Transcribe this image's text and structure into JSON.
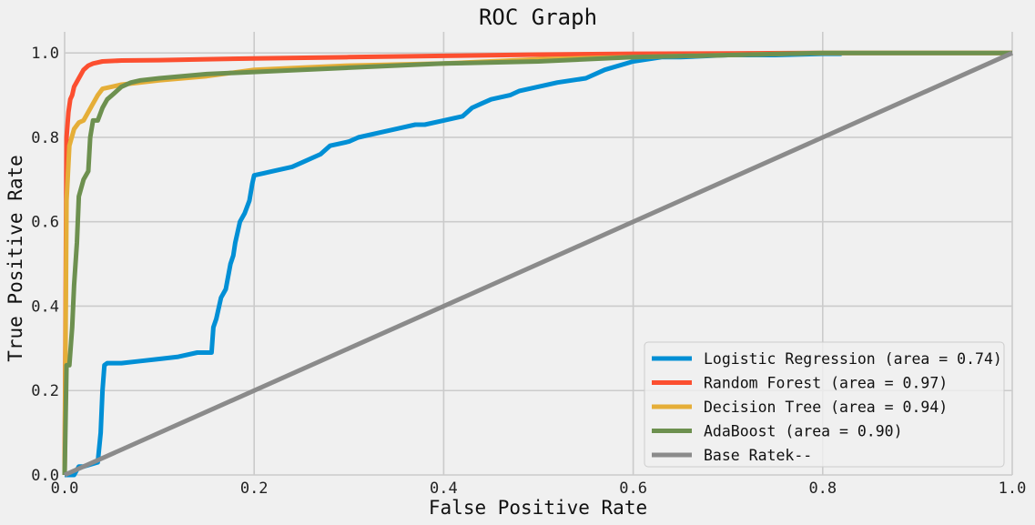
{
  "chart_data": {
    "type": "line",
    "title": "ROC Graph",
    "xlabel": "False Positive Rate",
    "ylabel": "True Positive Rate",
    "xlim": [
      0.0,
      1.0
    ],
    "ylim": [
      0.0,
      1.05
    ],
    "xticks": [
      0.0,
      0.2,
      0.4,
      0.6,
      0.8,
      1.0
    ],
    "xtick_labels": [
      "0.0",
      "0.2",
      "0.4",
      "0.6",
      "0.8",
      "1.0"
    ],
    "yticks": [
      0.0,
      0.2,
      0.4,
      0.6,
      0.8,
      1.0
    ],
    "ytick_labels": [
      "0.0",
      "0.2",
      "0.4",
      "0.6",
      "0.8",
      "1.0"
    ],
    "grid": true,
    "legend_position": "bottom-right",
    "series": [
      {
        "name": "Logistic Regression (area = 0.74)",
        "color": "#008fd5",
        "x": [
          0.0,
          0.01,
          0.015,
          0.02,
          0.035,
          0.038,
          0.04,
          0.042,
          0.045,
          0.06,
          0.08,
          0.1,
          0.12,
          0.14,
          0.155,
          0.157,
          0.16,
          0.165,
          0.17,
          0.175,
          0.178,
          0.18,
          0.185,
          0.19,
          0.195,
          0.198,
          0.2,
          0.21,
          0.22,
          0.24,
          0.25,
          0.27,
          0.28,
          0.29,
          0.3,
          0.31,
          0.33,
          0.35,
          0.37,
          0.38,
          0.4,
          0.42,
          0.43,
          0.44,
          0.45,
          0.47,
          0.48,
          0.5,
          0.52,
          0.55,
          0.57,
          0.6,
          0.63,
          0.65,
          0.7,
          0.75,
          0.8,
          0.82
        ],
        "y": [
          0.0,
          0.0,
          0.02,
          0.02,
          0.03,
          0.1,
          0.2,
          0.26,
          0.265,
          0.265,
          0.27,
          0.275,
          0.28,
          0.29,
          0.29,
          0.35,
          0.37,
          0.42,
          0.44,
          0.5,
          0.52,
          0.55,
          0.6,
          0.62,
          0.65,
          0.69,
          0.71,
          0.715,
          0.72,
          0.73,
          0.74,
          0.76,
          0.78,
          0.785,
          0.79,
          0.8,
          0.81,
          0.82,
          0.83,
          0.83,
          0.84,
          0.85,
          0.87,
          0.88,
          0.89,
          0.9,
          0.91,
          0.92,
          0.93,
          0.94,
          0.96,
          0.98,
          0.99,
          0.99,
          0.995,
          0.995,
          0.998,
          0.998
        ]
      },
      {
        "name": "Random Forest (area = 0.97)",
        "color": "#fc4f30",
        "x": [
          0.0,
          0.002,
          0.004,
          0.006,
          0.008,
          0.01,
          0.015,
          0.02,
          0.025,
          0.03,
          0.04,
          0.06,
          0.1,
          0.15,
          0.2,
          0.3,
          0.4,
          0.5,
          0.6,
          0.7,
          0.8,
          0.9,
          1.0
        ],
        "y": [
          0.0,
          0.8,
          0.86,
          0.89,
          0.9,
          0.92,
          0.94,
          0.96,
          0.97,
          0.975,
          0.98,
          0.982,
          0.983,
          0.985,
          0.987,
          0.99,
          0.993,
          0.996,
          0.998,
          0.999,
          1.0,
          1.0,
          1.0
        ]
      },
      {
        "name": "Decision Tree (area = 0.94)",
        "color": "#e5ae38",
        "x": [
          0.0,
          0.002,
          0.005,
          0.01,
          0.015,
          0.02,
          0.025,
          0.03,
          0.035,
          0.04,
          0.05,
          0.06,
          0.08,
          0.1,
          0.15,
          0.2,
          0.25,
          0.3,
          0.4,
          0.5,
          0.6,
          0.7,
          0.8,
          0.9,
          1.0
        ],
        "y": [
          0.0,
          0.65,
          0.78,
          0.82,
          0.835,
          0.84,
          0.86,
          0.88,
          0.9,
          0.915,
          0.92,
          0.925,
          0.93,
          0.935,
          0.945,
          0.96,
          0.965,
          0.97,
          0.975,
          0.985,
          0.99,
          0.995,
          1.0,
          1.0,
          1.0
        ]
      },
      {
        "name": "AdaBoost (area = 0.90)",
        "color": "#6d904f",
        "x": [
          0.0,
          0.002,
          0.005,
          0.008,
          0.01,
          0.013,
          0.015,
          0.02,
          0.025,
          0.027,
          0.03,
          0.035,
          0.04,
          0.045,
          0.05,
          0.06,
          0.07,
          0.08,
          0.1,
          0.15,
          0.2,
          0.3,
          0.4,
          0.5,
          0.6,
          0.7,
          0.8,
          0.9,
          1.0
        ],
        "y": [
          0.0,
          0.26,
          0.26,
          0.35,
          0.45,
          0.55,
          0.66,
          0.7,
          0.72,
          0.8,
          0.84,
          0.84,
          0.87,
          0.89,
          0.9,
          0.92,
          0.93,
          0.935,
          0.94,
          0.95,
          0.955,
          0.965,
          0.975,
          0.98,
          0.99,
          0.995,
          1.0,
          1.0,
          1.0
        ]
      },
      {
        "name": "Base Ratek--",
        "color": "#8b8b8b",
        "x": [
          0.0,
          1.0
        ],
        "y": [
          0.0,
          1.0
        ]
      }
    ]
  }
}
